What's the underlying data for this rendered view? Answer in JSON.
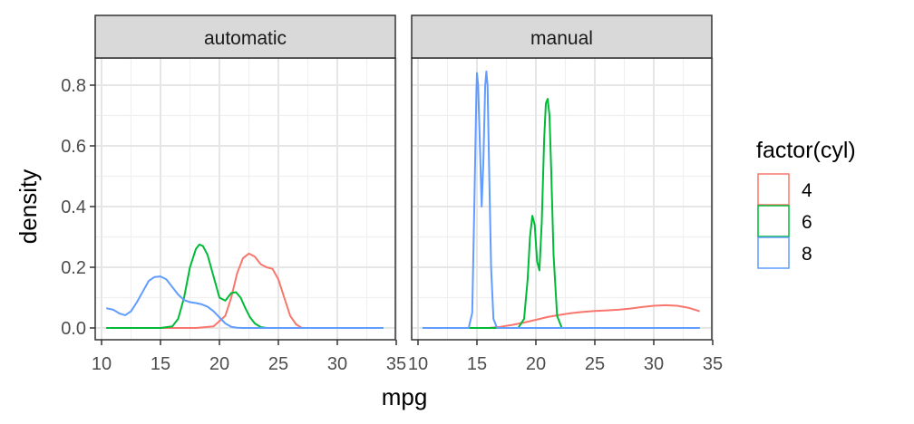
{
  "chart_data": {
    "type": "line",
    "subtype": "density-facets",
    "xlabel": "mpg",
    "ylabel": "density",
    "xlim": [
      10.4,
      33.9
    ],
    "ylim": [
      0,
      0.85
    ],
    "x_ticks": [
      "10",
      "15",
      "20",
      "25",
      "30",
      "35"
    ],
    "y_ticks": [
      "0.0",
      "0.2",
      "0.4",
      "0.6",
      "0.8"
    ],
    "grid": true,
    "legend": {
      "title": "factor(cyl)",
      "position": "right",
      "entries": [
        {
          "label": "4",
          "color": "#F8766D"
        },
        {
          "label": "6",
          "color": "#00BA38"
        },
        {
          "label": "8",
          "color": "#619CFF"
        }
      ]
    },
    "facets": [
      {
        "label": "automatic",
        "series": [
          {
            "name": "4",
            "color": "#F8766D",
            "x": [
              10.4,
              18.0,
              19.5,
              20.5,
              21.0,
              21.5,
              22.0,
              22.5,
              23.0,
              23.5,
              24.0,
              24.5,
              25.0,
              25.5,
              26.0,
              26.5,
              27.0,
              33.9
            ],
            "y": [
              0,
              0,
              0.005,
              0.04,
              0.1,
              0.18,
              0.23,
              0.245,
              0.235,
              0.21,
              0.2,
              0.195,
              0.16,
              0.1,
              0.04,
              0.012,
              0,
              0
            ]
          },
          {
            "name": "6",
            "color": "#00BA38",
            "x": [
              10.4,
              15.0,
              16.0,
              16.5,
              17.0,
              17.5,
              18.0,
              18.3,
              18.6,
              19.0,
              19.5,
              20.0,
              20.5,
              21.0,
              21.4,
              21.8,
              22.2,
              22.6,
              23.0,
              23.5,
              24.0,
              33.9
            ],
            "y": [
              0,
              0,
              0.005,
              0.03,
              0.1,
              0.2,
              0.26,
              0.275,
              0.27,
              0.24,
              0.17,
              0.1,
              0.09,
              0.115,
              0.118,
              0.1,
              0.065,
              0.035,
              0.015,
              0.003,
              0,
              0
            ]
          },
          {
            "name": "8",
            "color": "#619CFF",
            "x": [
              10.4,
              11.0,
              11.5,
              12.0,
              12.5,
              13.0,
              13.5,
              14.0,
              14.5,
              15.0,
              15.5,
              16.0,
              16.5,
              17.0,
              17.5,
              18.0,
              18.5,
              19.0,
              19.5,
              20.0,
              20.5,
              21.0,
              21.5,
              22.0,
              33.9
            ],
            "y": [
              0.065,
              0.06,
              0.048,
              0.042,
              0.055,
              0.085,
              0.12,
              0.155,
              0.168,
              0.17,
              0.16,
              0.135,
              0.11,
              0.092,
              0.085,
              0.082,
              0.078,
              0.07,
              0.055,
              0.035,
              0.015,
              0.004,
              0.001,
              0,
              0
            ]
          }
        ]
      },
      {
        "label": "manual",
        "series": [
          {
            "name": "4",
            "color": "#F8766D",
            "x": [
              10.4,
              16.0,
              17.0,
              18.0,
              19.0,
              20.0,
              21.0,
              22.0,
              23.0,
              24.0,
              25.0,
              26.0,
              27.0,
              28.0,
              29.0,
              30.0,
              31.0,
              32.0,
              33.0,
              33.9
            ],
            "y": [
              0,
              0,
              0.004,
              0.01,
              0.018,
              0.027,
              0.036,
              0.043,
              0.049,
              0.053,
              0.056,
              0.058,
              0.06,
              0.064,
              0.069,
              0.073,
              0.075,
              0.073,
              0.066,
              0.055
            ]
          },
          {
            "name": "6",
            "color": "#00BA38",
            "x": [
              10.4,
              18.5,
              19.0,
              19.3,
              19.5,
              19.7,
              19.9,
              20.1,
              20.3,
              20.5,
              20.7,
              20.85,
              21.0,
              21.15,
              21.3,
              21.5,
              21.8,
              22.2,
              33.9
            ],
            "y": [
              0,
              0,
              0.03,
              0.16,
              0.3,
              0.37,
              0.34,
              0.22,
              0.19,
              0.35,
              0.62,
              0.74,
              0.755,
              0.7,
              0.52,
              0.24,
              0.04,
              0,
              0
            ]
          },
          {
            "name": "8",
            "color": "#619CFF",
            "x": [
              10.4,
              14.3,
              14.6,
              14.8,
              14.95,
              15.0,
              15.1,
              15.25,
              15.4,
              15.55,
              15.7,
              15.8,
              15.9,
              16.05,
              16.2,
              16.4,
              16.7,
              33.9
            ],
            "y": [
              0,
              0,
              0.05,
              0.45,
              0.78,
              0.84,
              0.8,
              0.6,
              0.4,
              0.55,
              0.8,
              0.845,
              0.8,
              0.5,
              0.2,
              0.03,
              0,
              0
            ]
          }
        ]
      }
    ]
  }
}
